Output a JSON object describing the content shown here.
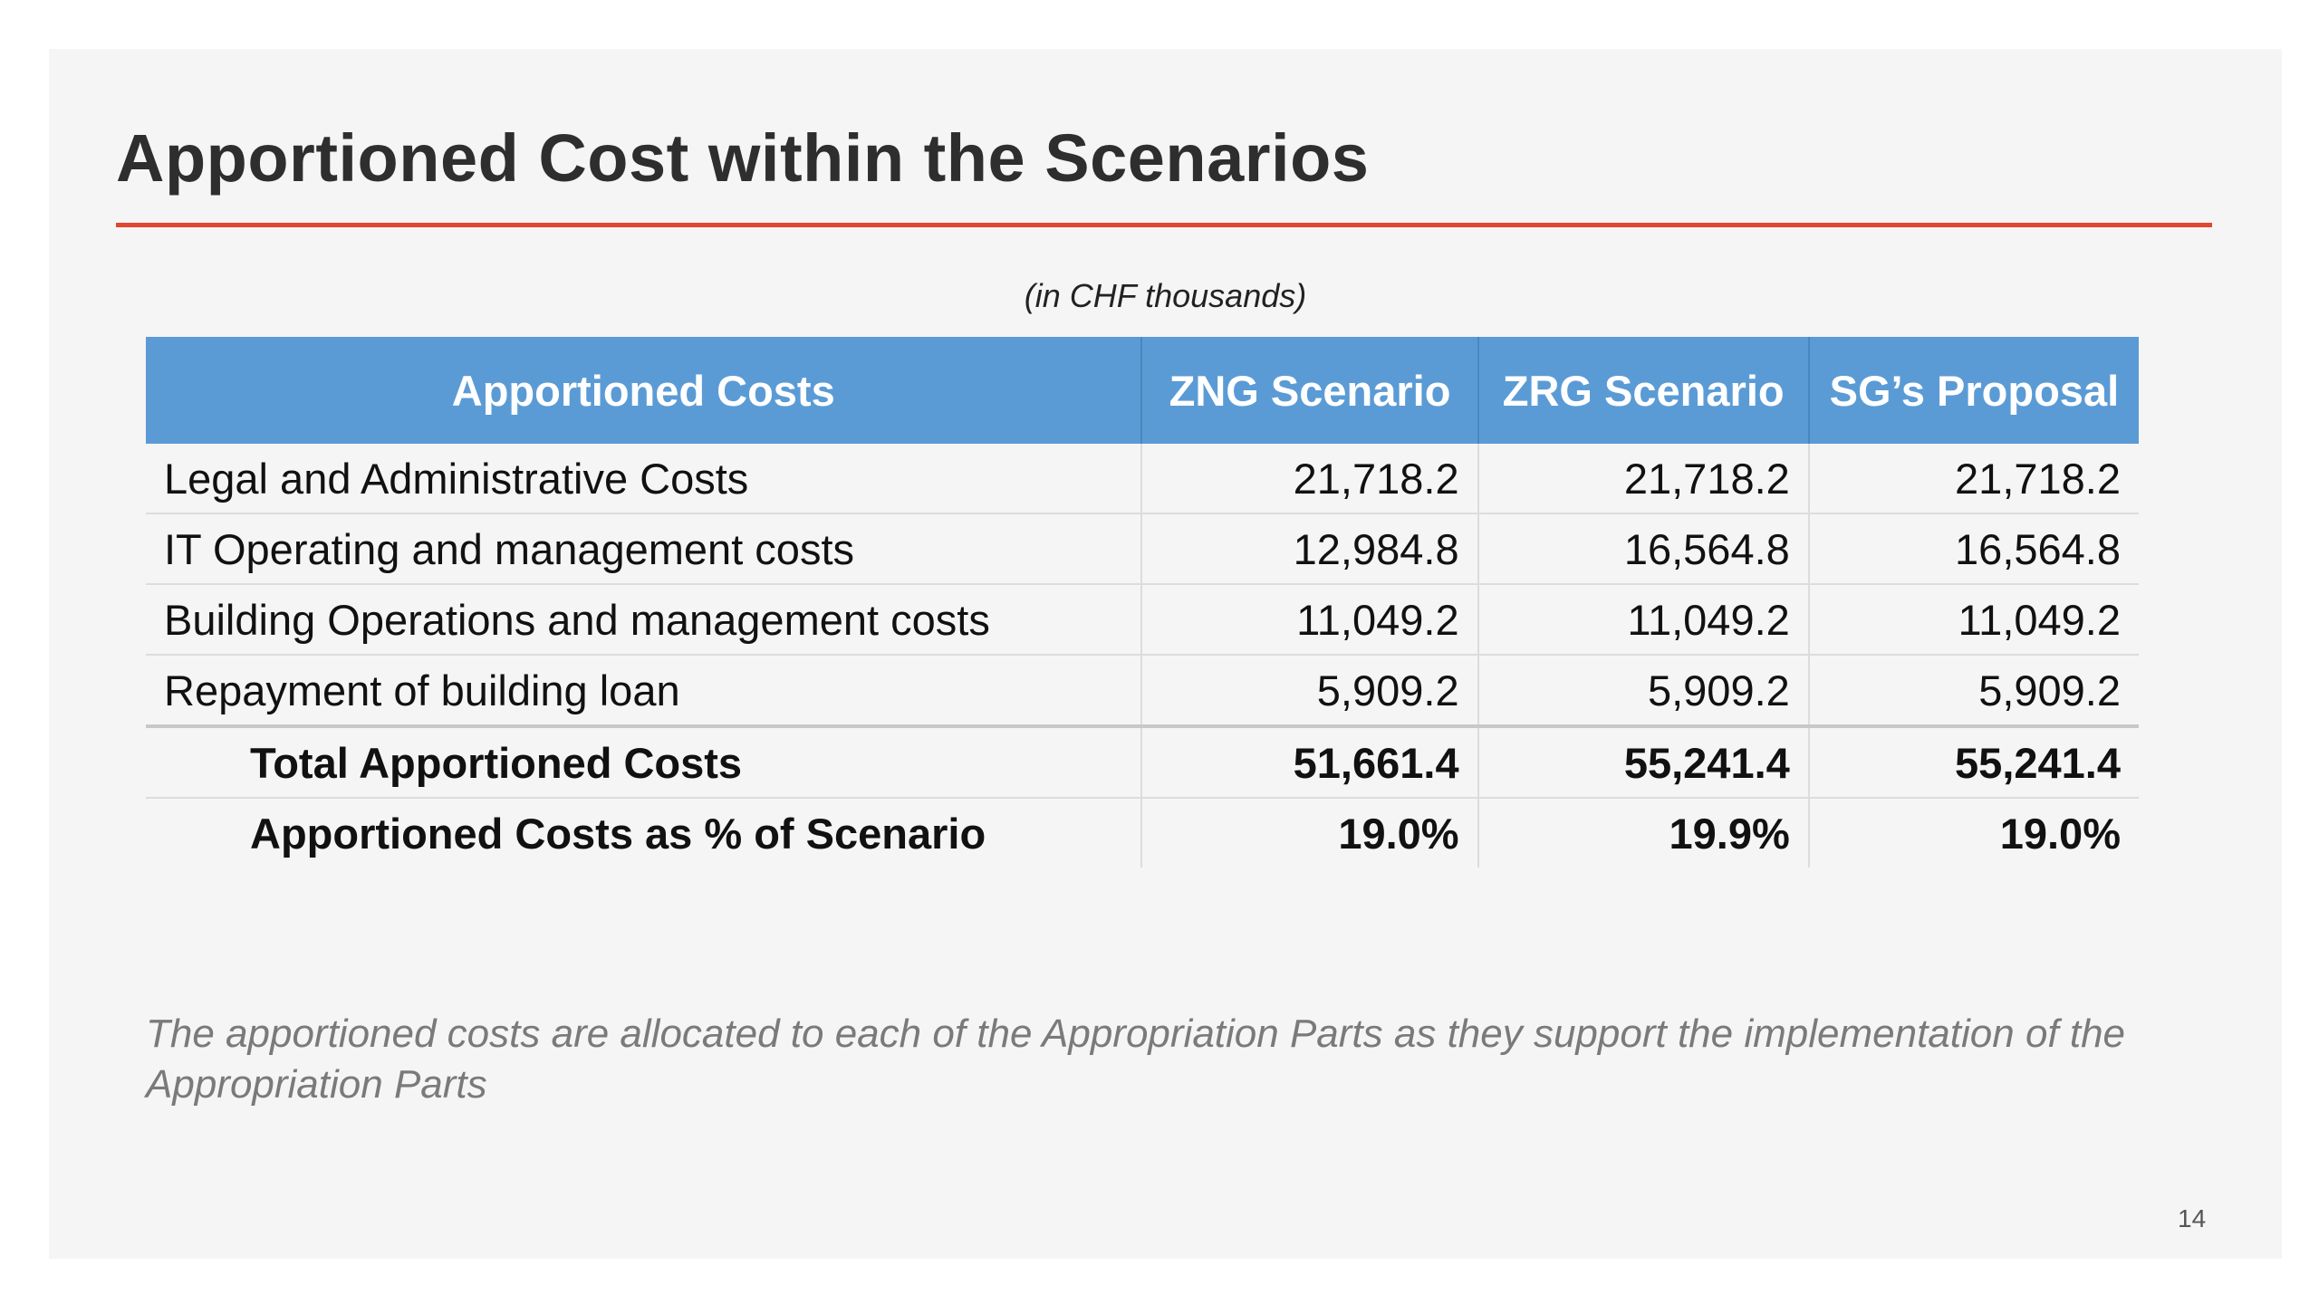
{
  "slide": {
    "title": "Apportioned Cost within the Scenarios",
    "unit_note": "(in CHF thousands)",
    "footnote": "The apportioned costs are allocated to each of the Appropriation Parts as they support the implementation of the Appropriation Parts",
    "page_number": "14"
  },
  "colors": {
    "accent_rule": "#e2472f",
    "header_fill": "#5b9bd5"
  },
  "table": {
    "headers": [
      "Apportioned Costs",
      "ZNG Scenario",
      "ZRG Scenario",
      "SG’s Proposal"
    ],
    "rows": [
      [
        "Legal and Administrative Costs",
        "21,718.2",
        "21,718.2",
        "21,718.2"
      ],
      [
        "IT Operating and management costs",
        "12,984.8",
        "16,564.8",
        "16,564.8"
      ],
      [
        "Building Operations and management costs",
        "11,049.2",
        "11,049.2",
        "11,049.2"
      ],
      [
        "Repayment of building loan",
        "5,909.2",
        "5,909.2",
        "5,909.2"
      ]
    ],
    "total_row": [
      "Total Apportioned Costs",
      "51,661.4",
      "55,241.4",
      "55,241.4"
    ],
    "percent_row": [
      "Apportioned Costs as % of Scenario",
      "19.0%",
      "19.9%",
      "19.0%"
    ]
  }
}
